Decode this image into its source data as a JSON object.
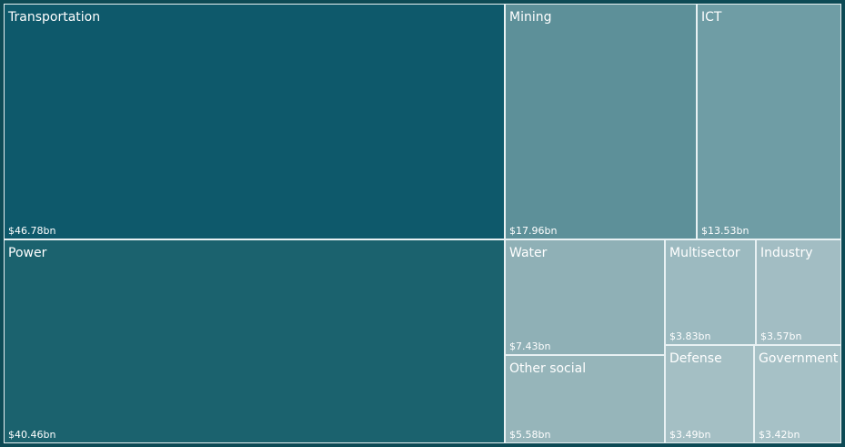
{
  "chart_data": {
    "type": "treemap",
    "title": "",
    "unit_format": "$%sbn",
    "items": [
      {
        "name": "Transportation",
        "value": 46.78,
        "label": "$46.78bn",
        "color": "#0e596b"
      },
      {
        "name": "Power",
        "value": 40.46,
        "label": "$40.46bn",
        "color": "#1b626e"
      },
      {
        "name": "Mining",
        "value": 17.96,
        "label": "$17.96bn",
        "color": "#5d9099"
      },
      {
        "name": "ICT",
        "value": 13.53,
        "label": "$13.53bn",
        "color": "#6f9da5"
      },
      {
        "name": "Water",
        "value": 7.43,
        "label": "$7.43bn",
        "color": "#8fb0b6"
      },
      {
        "name": "Other social",
        "value": 5.58,
        "label": "$5.58bn",
        "color": "#96b5ba"
      },
      {
        "name": "Multisector",
        "value": 3.83,
        "label": "$3.83bn",
        "color": "#9cbac0"
      },
      {
        "name": "Industry",
        "value": 3.57,
        "label": "$3.57bn",
        "color": "#a2bdc3"
      },
      {
        "name": "Defense",
        "value": 3.49,
        "label": "$3.49bn",
        "color": "#a4bfc4"
      },
      {
        "name": "Government",
        "value": 3.42,
        "label": "$3.42bn",
        "color": "#a6c1c6"
      }
    ]
  }
}
